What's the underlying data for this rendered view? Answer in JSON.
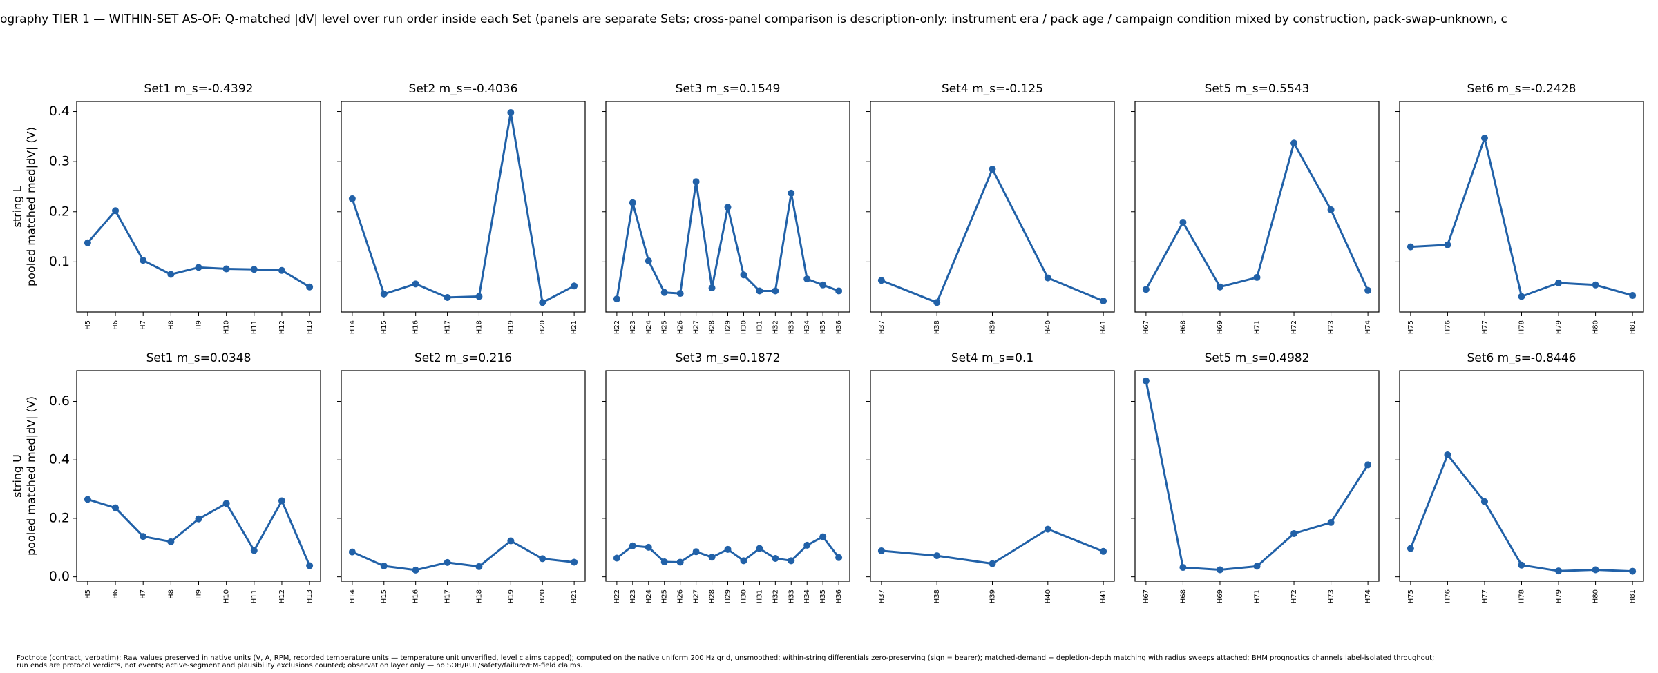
{
  "figure": {
    "suptitle": "ography TIER 1 — WITHIN-SET AS-OF: Q-matched |dV| level over run order inside each Set (panels are separate Sets; cross-panel comparison is description-only: instrument era / pack age / campaign condition mixed by construction, pack-swap-unknown, c",
    "footnote": "Footnote (contract, verbatim): Raw values preserved in native units (V, A, RPM, recorded temperature units — temperature unit unverified, level claims capped); computed on the native uniform 200 Hz grid, unsmoothed; within-string differentials zero-preserving (sign = bearer); matched-demand + depletion-depth matching with radius sweeps attached; BHM prognostics channels label-isolated throughout;\nrun ends are protocol verdicts, not events; active-segment and plausibility exclusions counted; observation layer only — no SOH/RUL/safety/failure/EM-field claims.",
    "line_color": "#2161a8"
  },
  "chart_data": [
    {
      "type": "line",
      "rows": [
        {
          "ylabel": [
            "string L",
            "pooled matched med|dV| (V)"
          ],
          "ylim": [
            0.0,
            0.42
          ],
          "yticks": [
            0.1,
            0.2,
            0.3,
            0.4
          ],
          "ytick_labels": [
            "0.1",
            "0.2",
            "0.3",
            "0.4"
          ],
          "panels": [
            {
              "title": "Set1  m_s=-0.4392",
              "categories": [
                "H5",
                "H6",
                "H7",
                "H8",
                "H9",
                "H10",
                "H11",
                "H12",
                "H13"
              ],
              "values": [
                0.138,
                0.202,
                0.103,
                0.075,
                0.089,
                0.086,
                0.085,
                0.083,
                0.05
              ]
            },
            {
              "title": "Set2  m_s=-0.4036",
              "categories": [
                "H14",
                "H15",
                "H16",
                "H17",
                "H18",
                "H19",
                "H20",
                "H21"
              ],
              "values": [
                0.226,
                0.036,
                0.056,
                0.029,
                0.031,
                0.398,
                0.019,
                0.052
              ]
            },
            {
              "title": "Set3  m_s=0.1549",
              "categories": [
                "H22",
                "H23",
                "H24",
                "H25",
                "H26",
                "H27",
                "H28",
                "H29",
                "H30",
                "H31",
                "H32",
                "H33",
                "H34",
                "H35",
                "H36"
              ],
              "values": [
                0.026,
                0.218,
                0.102,
                0.039,
                0.037,
                0.26,
                0.048,
                0.209,
                0.074,
                0.042,
                0.042,
                0.237,
                0.066,
                0.054,
                0.042
              ]
            },
            {
              "title": "Set4  m_s=-0.125",
              "categories": [
                "H37",
                "H38",
                "H39",
                "H40",
                "H41"
              ],
              "values": [
                0.063,
                0.019,
                0.285,
                0.068,
                0.022
              ]
            },
            {
              "title": "Set5  m_s=0.5543",
              "categories": [
                "H67",
                "H68",
                "H69",
                "H71",
                "H72",
                "H73",
                "H74"
              ],
              "values": [
                0.045,
                0.179,
                0.05,
                0.069,
                0.337,
                0.204,
                0.043
              ]
            },
            {
              "title": "Set6  m_s=-0.2428",
              "categories": [
                "H75",
                "H76",
                "H77",
                "H78",
                "H79",
                "H80",
                "H81"
              ],
              "values": [
                0.13,
                0.134,
                0.347,
                0.031,
                0.058,
                0.054,
                0.033
              ]
            }
          ]
        },
        {
          "ylabel": [
            "string U",
            "pooled matched med|dV| (V)"
          ],
          "ylim": [
            -0.015,
            0.705
          ],
          "yticks": [
            0.0,
            0.2,
            0.4,
            0.6
          ],
          "ytick_labels": [
            "0.0",
            "0.2",
            "0.4",
            "0.6"
          ],
          "panels": [
            {
              "title": "Set1  m_s=0.0348",
              "categories": [
                "H5",
                "H6",
                "H7",
                "H8",
                "H9",
                "H10",
                "H11",
                "H12",
                "H13"
              ],
              "values": [
                0.265,
                0.236,
                0.138,
                0.12,
                0.198,
                0.251,
                0.09,
                0.26,
                0.038
              ]
            },
            {
              "title": "Set2  m_s=0.216",
              "categories": [
                "H14",
                "H15",
                "H16",
                "H17",
                "H18",
                "H19",
                "H20",
                "H21"
              ],
              "values": [
                0.085,
                0.037,
                0.023,
                0.049,
                0.035,
                0.123,
                0.062,
                0.05
              ]
            },
            {
              "title": "Set3  m_s=0.1872",
              "categories": [
                "H22",
                "H23",
                "H24",
                "H25",
                "H26",
                "H27",
                "H28",
                "H29",
                "H30",
                "H31",
                "H32",
                "H33",
                "H34",
                "H35",
                "H36"
              ],
              "values": [
                0.064,
                0.106,
                0.101,
                0.051,
                0.05,
                0.086,
                0.067,
                0.094,
                0.055,
                0.097,
                0.063,
                0.055,
                0.108,
                0.137,
                0.066
              ]
            },
            {
              "title": "Set4  m_s=0.1",
              "categories": [
                "H37",
                "H38",
                "H39",
                "H40",
                "H41"
              ],
              "values": [
                0.089,
                0.072,
                0.045,
                0.163,
                0.087
              ]
            },
            {
              "title": "Set5  m_s=0.4982",
              "categories": [
                "H67",
                "H68",
                "H69",
                "H71",
                "H72",
                "H73",
                "H74"
              ],
              "values": [
                0.67,
                0.032,
                0.024,
                0.036,
                0.148,
                0.186,
                0.383
              ]
            },
            {
              "title": "Set6  m_s=-0.8446",
              "categories": [
                "H75",
                "H76",
                "H77",
                "H78",
                "H79",
                "H80",
                "H81"
              ],
              "values": [
                0.097,
                0.417,
                0.257,
                0.04,
                0.02,
                0.024,
                0.019
              ]
            }
          ]
        }
      ]
    }
  ]
}
